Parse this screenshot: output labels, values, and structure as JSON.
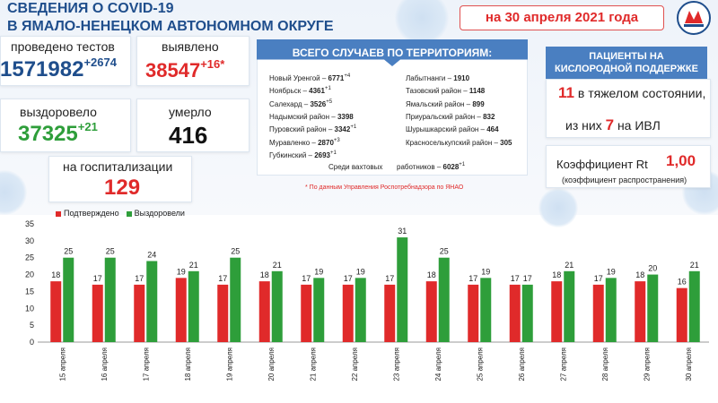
{
  "header": {
    "line1": "СВЕДЕНИЯ О COVID-19",
    "line2": "В ЯМАЛО-НЕНЕЦКОМ АВТОНОМНОМ ОКРУГЕ",
    "date": "на 30 апреля 2021 года"
  },
  "stats": {
    "tests_label": "проведено тестов",
    "tests_value": "1571982",
    "tests_delta": "+2674",
    "detected_label": "выявлено",
    "detected_value": "38547",
    "detected_delta": "+16*",
    "recovered_label": "выздоровело",
    "recovered_value": "37325",
    "recovered_delta": "+21",
    "died_label": "умерло",
    "died_value": "416",
    "hosp_label": "на госпитализации",
    "hosp_value": "129"
  },
  "territories": {
    "title": "ВСЕГО СЛУЧАЕВ ПО ТЕРРИТОРИЯМ:",
    "left": [
      {
        "name": "Новый Уренгой –",
        "value": "6771",
        "delta": "+4"
      },
      {
        "name": "Ноябрьск –",
        "value": "4361",
        "delta": "+1"
      },
      {
        "name": "Салехард –",
        "value": "3526",
        "delta": "+5"
      },
      {
        "name": "Надымский район –",
        "value": "3398",
        "delta": ""
      },
      {
        "name": "Пуровский район –",
        "value": "3342",
        "delta": "+1"
      },
      {
        "name": "Муравленко –",
        "value": "2870",
        "delta": "+3"
      },
      {
        "name": "Губкинский –",
        "value": "2693",
        "delta": "+1"
      }
    ],
    "right": [
      {
        "name": "Лабытнанги –",
        "value": "1910",
        "delta": ""
      },
      {
        "name": "Тазовский район –",
        "value": "1148",
        "delta": ""
      },
      {
        "name": "Ямальский район –",
        "value": "899",
        "delta": ""
      },
      {
        "name": "Приуральский район –",
        "value": "832",
        "delta": ""
      },
      {
        "name": "Шурышкарский район –",
        "value": "464",
        "delta": ""
      },
      {
        "name": "Красноселькупский район –",
        "value": "305",
        "delta": ""
      }
    ],
    "watch_label_a": "Среди вахтовых",
    "watch_label_b": "работников –",
    "watch_value": "6028",
    "watch_delta": "+1",
    "note": "* По данным Управления  Роспотребнадзора по ЯНАО"
  },
  "oxygen": {
    "title_line1": "ПАЦИЕНТЫ НА",
    "title_line2": "КИСЛОРОДНОЙ ПОДДЕРЖКЕ",
    "severe_value": "11",
    "severe_label": "в тяжелом состоянии,",
    "ivl_prefix": "из них",
    "ivl_value": "7",
    "ivl_label": "на  ИВЛ",
    "rt_label": "Коэффициент Rt",
    "rt_value": "1,00",
    "rt_note": "(коэффициент распространения)"
  },
  "colors": {
    "confirmed": "#e02a2a",
    "recovered": "#2e9e3a",
    "brand": "#1f4e8c"
  },
  "chart_data": {
    "type": "bar",
    "categories": [
      "15 апреля",
      "16 апреля",
      "17 апреля",
      "18 апреля",
      "19 апреля",
      "20 апреля",
      "21 апреля",
      "22 апреля",
      "23 апреля",
      "24 апреля",
      "25 апреля",
      "26 апреля",
      "27 апреля",
      "28 апреля",
      "29 апреля",
      "30 апреля"
    ],
    "series": [
      {
        "name": "Подтверждено",
        "color": "#e02a2a",
        "values": [
          18,
          17,
          17,
          19,
          17,
          18,
          17,
          17,
          17,
          18,
          17,
          17,
          18,
          17,
          18,
          16
        ]
      },
      {
        "name": "Выздоровели",
        "color": "#2e9e3a",
        "values": [
          25,
          25,
          24,
          21,
          25,
          21,
          19,
          19,
          31,
          25,
          19,
          17,
          21,
          19,
          20,
          21
        ]
      }
    ],
    "y_ticks": [
      "0",
      "5",
      "10",
      "15",
      "20",
      "25",
      "30",
      "35"
    ],
    "ylim": [
      0,
      35
    ],
    "legend_position": "top-left",
    "grid": false
  }
}
